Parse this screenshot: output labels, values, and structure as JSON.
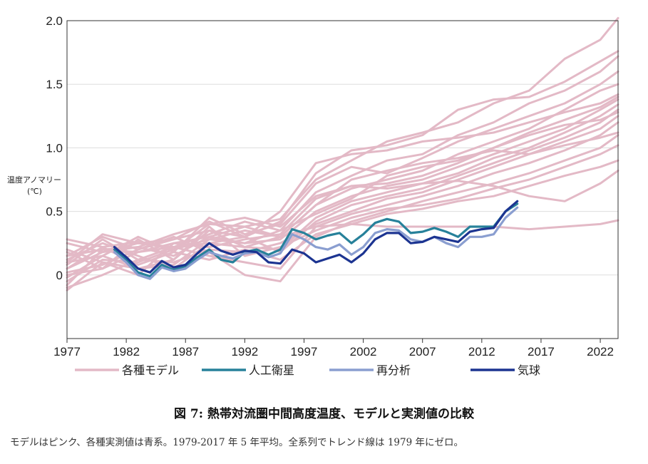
{
  "figure": {
    "title": "図 7: 熱帯対流圏中間高度温度、モデルと実測値の比較",
    "caption": "モデルはピンク、各種実測値は青系。1979-2017 年 5 年平均。全系列でトレンド線は 1979 年にゼロ。"
  },
  "chart_data": {
    "type": "line",
    "ylabel_lines": [
      "温度アノマリー",
      "(℃)"
    ],
    "xlim": [
      1977,
      2023.5
    ],
    "ylim": [
      -0.5,
      2.0
    ],
    "xticks": [
      1977,
      1982,
      1987,
      1992,
      1997,
      2002,
      2007,
      2012,
      2017,
      2022
    ],
    "yticks": [
      {
        "value": 2.0,
        "label": "2.0"
      },
      {
        "value": 1.5,
        "label": "1.5"
      },
      {
        "value": 1.0,
        "label": "1.0"
      },
      {
        "value": 0.5,
        "label": "0.5"
      },
      {
        "value": 0,
        "label": "0"
      }
    ],
    "grid": "horizontal",
    "legend_position": "bottom",
    "colors": {
      "models": "#e3b9c6",
      "satellite": "#27819a",
      "reanalysis": "#8a9ed0",
      "balloon": "#1c3491",
      "grid": "#dddddd",
      "axis": "#333333"
    },
    "legend": [
      {
        "key": "models",
        "label": "各種モデル"
      },
      {
        "key": "satellite",
        "label": "人工衛星"
      },
      {
        "key": "reanalysis",
        "label": "再分析"
      },
      {
        "key": "balloon",
        "label": "気球"
      }
    ],
    "model_series": [
      {
        "x": [
          1977,
          1980,
          1983,
          1986,
          1989,
          1992,
          1995,
          1998,
          2001,
          2004,
          2007,
          2010,
          2013,
          2016,
          2019,
          2022,
          2023.5
        ],
        "values": [
          0.28,
          0.22,
          0.26,
          0.2,
          0.4,
          0.38,
          0.44,
          0.75,
          0.9,
          1.05,
          1.12,
          1.2,
          1.35,
          1.45,
          1.7,
          1.85,
          2.02
        ]
      },
      {
        "x": [
          1977,
          1980,
          1983,
          1986,
          1989,
          1992,
          1995,
          1998,
          2001,
          2004,
          2007,
          2010,
          2013,
          2016,
          2019,
          2022,
          2023.5
        ],
        "values": [
          0.15,
          0.3,
          0.2,
          0.28,
          0.35,
          0.3,
          0.42,
          0.8,
          0.98,
          1.02,
          1.1,
          1.3,
          1.38,
          1.4,
          1.52,
          1.68,
          1.76
        ]
      },
      {
        "x": [
          1977,
          1980,
          1983,
          1986,
          1989,
          1992,
          1995,
          1998,
          2001,
          2004,
          2007,
          2010,
          2013,
          2016,
          2019,
          2022,
          2023.5
        ],
        "values": [
          0.05,
          0.18,
          0.25,
          0.22,
          0.32,
          0.42,
          0.35,
          0.65,
          0.78,
          0.9,
          0.95,
          1.1,
          1.2,
          1.35,
          1.45,
          1.6,
          1.72
        ]
      },
      {
        "x": [
          1977,
          1980,
          1983,
          1986,
          1989,
          1992,
          1995,
          1998,
          2001,
          2004,
          2007,
          2010,
          2013,
          2016,
          2019,
          2022,
          2023.5
        ],
        "values": [
          0.1,
          0.15,
          0.3,
          0.18,
          0.45,
          0.32,
          0.4,
          0.72,
          0.85,
          0.8,
          0.92,
          1.05,
          1.15,
          1.25,
          1.35,
          1.5,
          1.6
        ]
      },
      {
        "x": [
          1977,
          1980,
          1983,
          1986,
          1989,
          1992,
          1995,
          1998,
          2001,
          2004,
          2007,
          2010,
          2013,
          2016,
          2019,
          2022,
          2023.5
        ],
        "values": [
          -0.05,
          0.12,
          0.1,
          0.2,
          0.28,
          0.35,
          0.3,
          0.55,
          0.68,
          0.75,
          0.82,
          0.95,
          1.05,
          1.15,
          1.3,
          1.45,
          1.5
        ]
      },
      {
        "x": [
          1977,
          1980,
          1983,
          1986,
          1989,
          1992,
          1995,
          1998,
          2001,
          2004,
          2007,
          2010,
          2013,
          2016,
          2019,
          2022,
          2023.5
        ],
        "values": [
          0.0,
          0.05,
          0.18,
          0.25,
          0.22,
          0.28,
          0.32,
          0.6,
          0.7,
          0.72,
          0.78,
          0.88,
          1.0,
          1.12,
          1.22,
          1.32,
          1.4
        ]
      },
      {
        "x": [
          1977,
          1980,
          1983,
          1986,
          1989,
          1992,
          1995,
          1998,
          2001,
          2004,
          2007,
          2010,
          2013,
          2016,
          2019,
          2022,
          2023.5
        ],
        "values": [
          -0.08,
          0.2,
          0.22,
          0.15,
          0.3,
          0.25,
          0.28,
          0.5,
          0.62,
          0.7,
          0.75,
          0.85,
          0.95,
          1.05,
          1.15,
          1.3,
          1.38
        ]
      },
      {
        "x": [
          1977,
          1980,
          1983,
          1986,
          1989,
          1992,
          1995,
          1998,
          2001,
          2004,
          2007,
          2010,
          2013,
          2016,
          2019,
          2022,
          2023.5
        ],
        "values": [
          0.2,
          0.1,
          0.05,
          0.12,
          0.35,
          0.22,
          0.2,
          0.45,
          0.58,
          0.65,
          0.72,
          0.8,
          0.92,
          1.0,
          1.12,
          1.25,
          1.34
        ]
      },
      {
        "x": [
          1977,
          1980,
          1983,
          1986,
          1989,
          1992,
          1995,
          1998,
          2001,
          2004,
          2007,
          2010,
          2013,
          2016,
          2019,
          2022,
          2023.5
        ],
        "values": [
          0.12,
          0.25,
          0.15,
          0.05,
          0.25,
          0.3,
          0.18,
          0.42,
          0.55,
          0.62,
          0.68,
          0.78,
          0.88,
          0.98,
          1.08,
          1.2,
          1.3
        ]
      },
      {
        "x": [
          1977,
          1980,
          1983,
          1986,
          1989,
          1992,
          1995,
          1998,
          2001,
          2004,
          2007,
          2010,
          2013,
          2016,
          2019,
          2022,
          2023.5
        ],
        "values": [
          -0.1,
          0.0,
          0.12,
          0.1,
          0.2,
          0.18,
          0.25,
          0.4,
          0.5,
          0.6,
          0.65,
          0.75,
          0.85,
          0.95,
          1.05,
          1.15,
          1.25
        ]
      },
      {
        "x": [
          1977,
          1980,
          1983,
          1986,
          1989,
          1992,
          1995,
          1998,
          2001,
          2004,
          2007,
          2010,
          2013,
          2016,
          2019,
          2022,
          2023.5
        ],
        "values": [
          0.08,
          0.28,
          0.12,
          0.22,
          0.15,
          0.1,
          0.05,
          0.38,
          0.48,
          0.55,
          0.62,
          0.7,
          0.8,
          0.88,
          0.98,
          1.1,
          1.2
        ]
      },
      {
        "x": [
          1977,
          1980,
          1983,
          1986,
          1989,
          1992,
          1995,
          1998,
          2001,
          2004,
          2007,
          2010,
          2013,
          2016,
          2019,
          2022,
          2023.5
        ],
        "values": [
          0.02,
          0.08,
          0.2,
          0.3,
          0.18,
          0.0,
          -0.05,
          0.3,
          0.42,
          0.5,
          0.58,
          0.65,
          0.72,
          0.8,
          0.9,
          1.0,
          1.1
        ]
      },
      {
        "x": [
          1977,
          1980,
          1983,
          1986,
          1989,
          1992,
          1995,
          1998,
          2001,
          2004,
          2007,
          2010,
          2013,
          2016,
          2019,
          2022,
          2023.5
        ],
        "values": [
          0.18,
          0.05,
          0.28,
          0.12,
          0.38,
          0.15,
          0.22,
          0.35,
          0.45,
          0.52,
          0.55,
          0.6,
          0.68,
          0.75,
          0.85,
          0.95,
          1.02
        ]
      },
      {
        "x": [
          1977,
          1980,
          1983,
          1986,
          1989,
          1992,
          1995,
          1998,
          2001,
          2004,
          2007,
          2010,
          2013,
          2016,
          2019,
          2022,
          2023.5
        ],
        "values": [
          0.05,
          0.22,
          0.08,
          0.18,
          0.12,
          0.2,
          0.12,
          0.32,
          0.4,
          0.48,
          0.52,
          0.58,
          0.62,
          0.7,
          0.78,
          0.85,
          0.9
        ]
      },
      {
        "x": [
          1977,
          1980,
          1983,
          1986,
          1989,
          1992,
          1995,
          1998,
          2001,
          2004,
          2007,
          2010,
          2013,
          2016,
          2019,
          2022,
          2023.5
        ],
        "values": [
          -0.12,
          0.1,
          0.0,
          0.25,
          0.3,
          0.38,
          0.3,
          0.55,
          0.75,
          0.82,
          0.88,
          0.92,
          0.98,
          0.95,
          1.02,
          1.08,
          1.12
        ]
      },
      {
        "x": [
          1977,
          1980,
          1983,
          1986,
          1989,
          1992,
          1995,
          1998,
          2001,
          2004,
          2007,
          2010,
          2013,
          2016,
          2019,
          2022,
          2023.5
        ],
        "values": [
          0.25,
          0.18,
          0.22,
          0.32,
          0.4,
          0.45,
          0.38,
          0.62,
          0.7,
          0.68,
          0.72,
          0.74,
          0.7,
          0.62,
          0.58,
          0.72,
          0.82
        ]
      },
      {
        "x": [
          1977,
          1980,
          1983,
          1986,
          1989,
          1992,
          1995,
          1998,
          2001,
          2004,
          2007,
          2010,
          2013,
          2016,
          2019,
          2022,
          2023.5
        ],
        "values": [
          0.1,
          0.32,
          0.25,
          0.28,
          0.42,
          0.3,
          0.5,
          0.88,
          0.95,
          0.98,
          1.05,
          1.08,
          1.12,
          1.2,
          1.28,
          1.35,
          1.42
        ]
      },
      {
        "x": [
          1977,
          1980,
          1983,
          1986,
          1989,
          1992,
          1995,
          1998,
          2001,
          2004,
          2007,
          2010,
          2013,
          2016,
          2019,
          2022,
          2023.5
        ],
        "values": [
          -0.02,
          0.15,
          0.05,
          0.08,
          0.28,
          0.25,
          0.35,
          0.48,
          0.6,
          0.78,
          0.85,
          0.9,
          1.0,
          1.1,
          1.18,
          1.22,
          1.28
        ]
      },
      {
        "x": [
          1977,
          1980,
          1983,
          1986,
          1989,
          1992,
          1995,
          1998,
          2001,
          2004,
          2007,
          2010,
          2013,
          2016,
          2019,
          2022,
          2023.5
        ],
        "values": [
          0.15,
          0.2,
          0.18,
          0.22,
          0.25,
          0.22,
          0.3,
          0.38,
          0.4,
          0.38,
          0.38,
          0.38,
          0.38,
          0.36,
          0.38,
          0.4,
          0.43
        ]
      }
    ],
    "observed_series": [
      {
        "key": "satellite",
        "x": [
          1981,
          1982,
          1983,
          1984,
          1985,
          1986,
          1987,
          1988,
          1989,
          1990,
          1991,
          1992,
          1993,
          1994,
          1995,
          1996,
          1997,
          1998,
          1999,
          2000,
          2001,
          2002,
          2003,
          2004,
          2005,
          2006,
          2007,
          2008,
          2009,
          2010,
          2011,
          2012,
          2013,
          2014,
          2015
        ],
        "values": [
          0.2,
          0.12,
          0.02,
          -0.01,
          0.08,
          0.04,
          0.07,
          0.14,
          0.2,
          0.12,
          0.1,
          0.18,
          0.2,
          0.16,
          0.2,
          0.36,
          0.33,
          0.28,
          0.31,
          0.33,
          0.25,
          0.32,
          0.41,
          0.44,
          0.42,
          0.33,
          0.34,
          0.37,
          0.34,
          0.3,
          0.38,
          0.38,
          0.38,
          0.5,
          0.56
        ]
      },
      {
        "key": "reanalysis",
        "x": [
          1981,
          1982,
          1983,
          1984,
          1985,
          1986,
          1987,
          1988,
          1989,
          1990,
          1991,
          1992,
          1993,
          1994,
          1995,
          1996,
          1997,
          1998,
          1999,
          2000,
          2001,
          2002,
          2003,
          2004,
          2005,
          2006,
          2007,
          2008,
          2009,
          2010,
          2011,
          2012,
          2013,
          2014,
          2015
        ],
        "values": [
          0.18,
          0.1,
          0.0,
          -0.03,
          0.06,
          0.03,
          0.05,
          0.12,
          0.18,
          0.15,
          0.13,
          0.17,
          0.18,
          0.14,
          0.17,
          0.32,
          0.28,
          0.22,
          0.2,
          0.24,
          0.16,
          0.22,
          0.33,
          0.36,
          0.35,
          0.28,
          0.26,
          0.3,
          0.25,
          0.22,
          0.3,
          0.3,
          0.32,
          0.45,
          0.53
        ]
      },
      {
        "key": "balloon",
        "x": [
          1981,
          1982,
          1983,
          1984,
          1985,
          1986,
          1987,
          1988,
          1989,
          1990,
          1991,
          1992,
          1993,
          1994,
          1995,
          1996,
          1997,
          1998,
          1999,
          2000,
          2001,
          2002,
          2003,
          2004,
          2005,
          2006,
          2007,
          2008,
          2009,
          2010,
          2011,
          2012,
          2013,
          2014,
          2015
        ],
        "values": [
          0.22,
          0.14,
          0.05,
          0.02,
          0.11,
          0.06,
          0.08,
          0.17,
          0.25,
          0.19,
          0.16,
          0.19,
          0.18,
          0.1,
          0.09,
          0.2,
          0.17,
          0.1,
          0.13,
          0.16,
          0.1,
          0.17,
          0.28,
          0.33,
          0.33,
          0.25,
          0.26,
          0.3,
          0.28,
          0.26,
          0.34,
          0.36,
          0.37,
          0.5,
          0.58
        ]
      }
    ]
  }
}
